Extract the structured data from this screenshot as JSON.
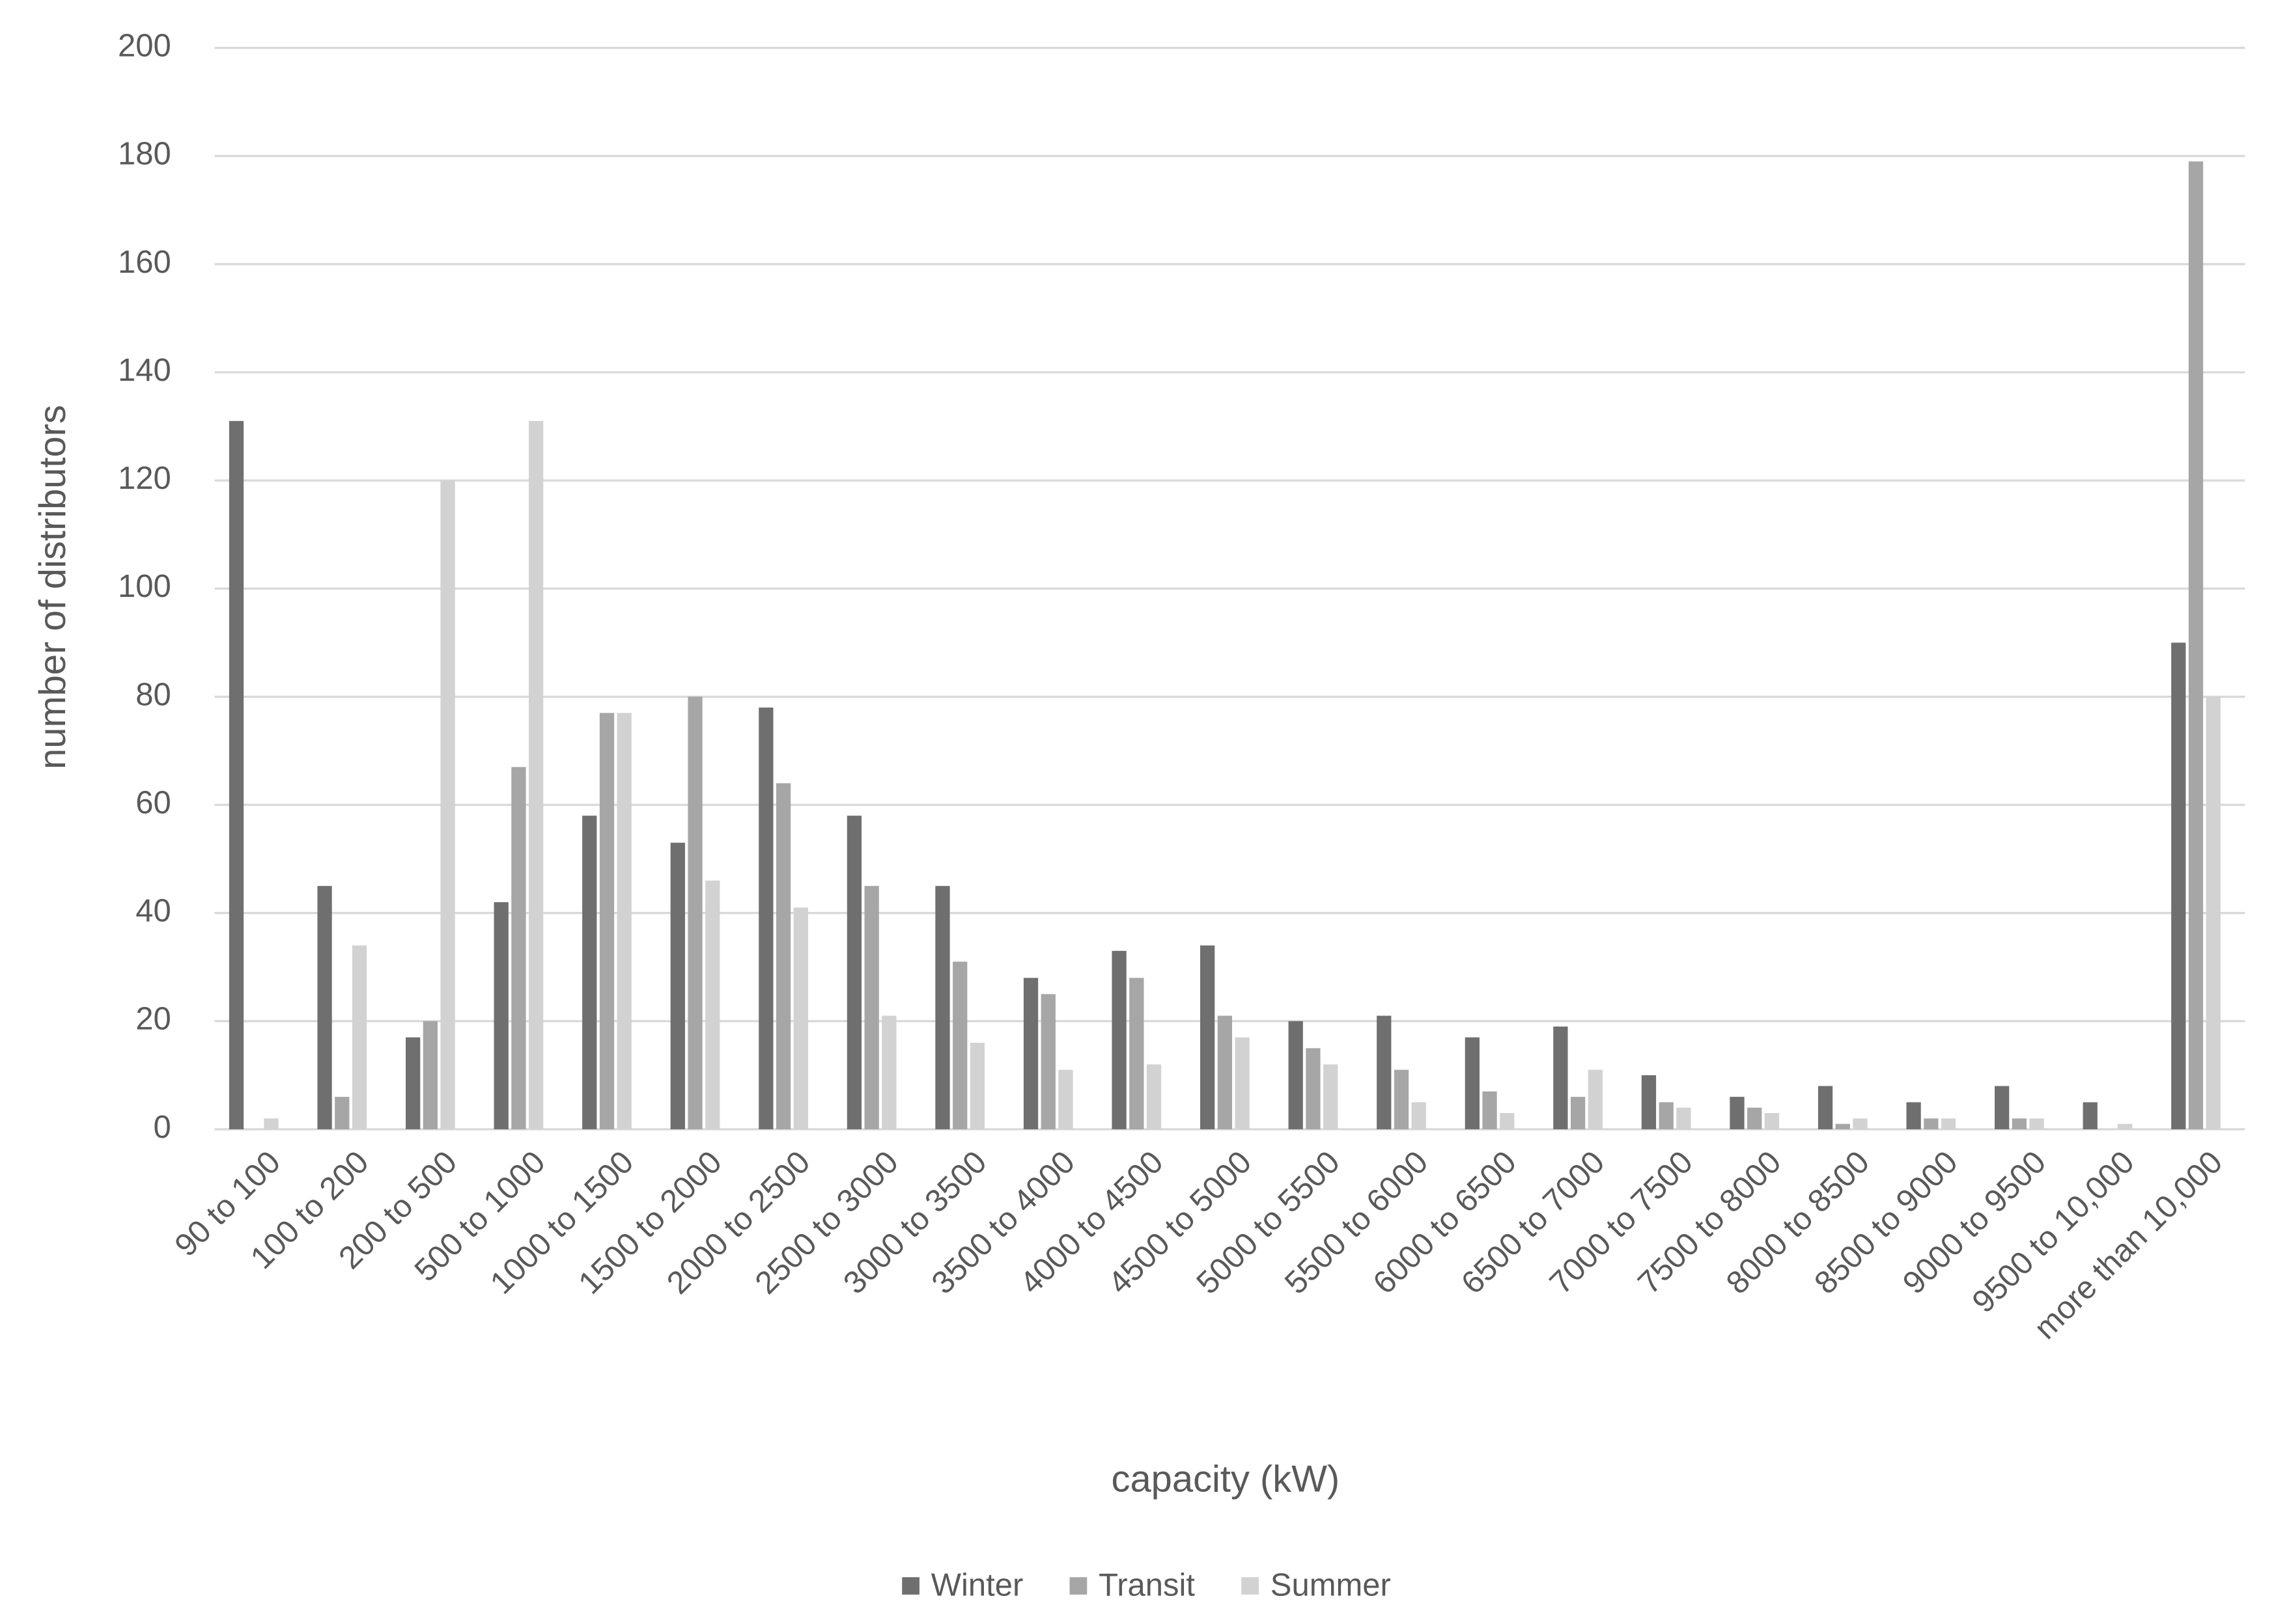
{
  "chart_data": {
    "type": "bar",
    "x_label": "capacity (kW)",
    "y_label": "number of distributors",
    "categories": [
      "90 to 100",
      "100 to 200",
      "200 to 500",
      "500 to 1000",
      "1000 to 1500",
      "1500 to 2000",
      "2000 to 2500",
      "2500 to 3000",
      "3000 to 3500",
      "3500 to 4000",
      "4000 to 4500",
      "4500 to 5000",
      "5000 to 5500",
      "5500 to 6000",
      "6000 to 6500",
      "6500 to 7000",
      "7000 to 7500",
      "7500 to 8000",
      "8000 to 8500",
      "8500 to 9000",
      "9000 to 9500",
      "9500 to 10,000",
      "more than 10,000"
    ],
    "series": [
      {
        "name": "Winter",
        "color": "#6f6f6f",
        "values": [
          131,
          45,
          17,
          42,
          58,
          53,
          78,
          58,
          45,
          28,
          33,
          34,
          20,
          21,
          17,
          19,
          10,
          6,
          8,
          5,
          8,
          5,
          90
        ]
      },
      {
        "name": "Transit",
        "color": "#a6a6a6",
        "values": [
          0,
          6,
          20,
          67,
          77,
          80,
          64,
          45,
          31,
          25,
          28,
          21,
          15,
          11,
          7,
          6,
          5,
          4,
          1,
          2,
          2,
          0,
          179
        ]
      },
      {
        "name": "Summer",
        "color": "#d2d2d2",
        "values": [
          2,
          34,
          120,
          131,
          77,
          46,
          41,
          21,
          16,
          11,
          12,
          17,
          12,
          5,
          3,
          11,
          4,
          3,
          2,
          2,
          2,
          1,
          80
        ]
      }
    ],
    "ylim": [
      0,
      200
    ],
    "yticks": [
      0,
      20,
      40,
      60,
      80,
      100,
      120,
      140,
      160,
      180,
      200
    ],
    "grid": true,
    "legend": "bottom"
  }
}
